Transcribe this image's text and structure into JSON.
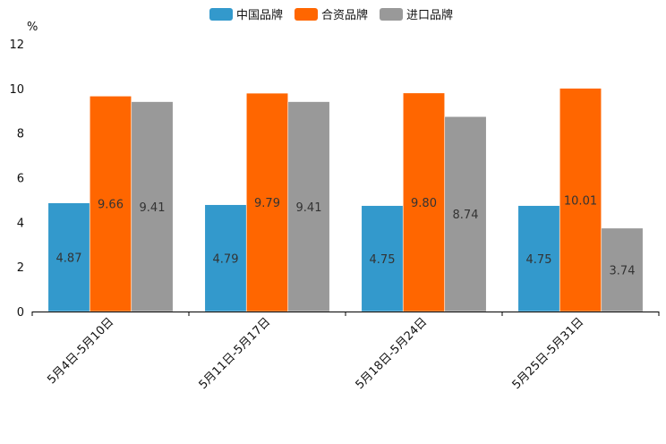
{
  "chart_data": {
    "type": "bar",
    "title": "",
    "ylabel": "%",
    "xlabel": "",
    "ylim": [
      0,
      12
    ],
    "yticks": [
      0,
      2,
      4,
      6,
      8,
      10,
      12
    ],
    "categories": [
      "5月4日-5月10日",
      "5月11日-5月17日",
      "5月18日-5月24日",
      "5月25日-5月31日"
    ],
    "series": [
      {
        "name": "中国品牌",
        "color": "#3399cc",
        "values": [
          4.87,
          4.79,
          4.75,
          4.75
        ],
        "labels": [
          "4.87",
          "4.79",
          "4.75",
          "4.75"
        ]
      },
      {
        "name": "合资品牌",
        "color": "#ff6600",
        "values": [
          9.66,
          9.79,
          9.8,
          10.01
        ],
        "labels": [
          "9.66",
          "9.79",
          "9.80",
          "10.01"
        ]
      },
      {
        "name": "进口品牌",
        "color": "#999999",
        "values": [
          9.41,
          9.41,
          8.74,
          3.74
        ],
        "labels": [
          "9.41",
          "9.41",
          "8.74",
          "3.74"
        ]
      }
    ],
    "legend_position": "top-center",
    "grid": false
  }
}
